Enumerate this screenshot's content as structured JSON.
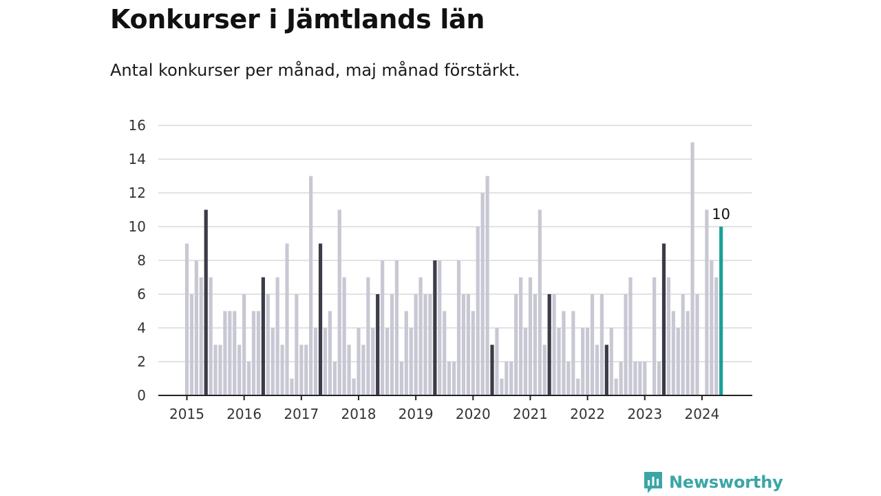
{
  "header": {
    "title": "Konkurser i Jämtlands län",
    "subtitle": "Antal konkurser per månad, maj månad förstärkt."
  },
  "brand": {
    "name": "Newsworthy",
    "icon": "newsworthy-logo-icon",
    "color": "#3aa6a6"
  },
  "colors": {
    "bar": "#c8c8d4",
    "may": "#3c3c48",
    "latest": "#1aa198",
    "grid": "#d9d9d9",
    "axis": "#222222"
  },
  "chart_data": {
    "type": "bar",
    "title": "Konkurser i Jämtlands län",
    "subtitle": "Antal konkurser per månad, maj månad förstärkt.",
    "xlabel": "",
    "ylabel": "",
    "ylim": [
      0,
      16
    ],
    "yticks": [
      0,
      2,
      4,
      6,
      8,
      10,
      12,
      14,
      16
    ],
    "xticks": [
      "2015",
      "2016",
      "2017",
      "2018",
      "2019",
      "2020",
      "2021",
      "2022",
      "2023",
      "2024"
    ],
    "start": "2015-01",
    "end": "2024-05",
    "highlight_month": "maj",
    "grid": true,
    "legend": "none",
    "annotation": {
      "month": "2024-05",
      "label": "10"
    },
    "series": [
      {
        "year": "2015",
        "values": [
          9,
          6,
          8,
          7,
          11,
          7,
          3,
          3,
          5,
          5,
          5,
          3
        ]
      },
      {
        "year": "2016",
        "values": [
          6,
          2,
          5,
          5,
          7,
          6,
          4,
          7,
          3,
          9,
          1,
          6
        ]
      },
      {
        "year": "2017",
        "values": [
          3,
          3,
          13,
          4,
          9,
          4,
          5,
          2,
          11,
          7,
          3,
          1
        ]
      },
      {
        "year": "2018",
        "values": [
          4,
          3,
          7,
          4,
          6,
          8,
          4,
          6,
          8,
          2,
          5,
          4
        ]
      },
      {
        "year": "2019",
        "values": [
          6,
          7,
          6,
          6,
          8,
          8,
          5,
          2,
          2,
          8,
          6,
          6
        ]
      },
      {
        "year": "2020",
        "values": [
          5,
          10,
          12,
          13,
          3,
          4,
          1,
          2,
          2,
          6,
          7,
          4
        ]
      },
      {
        "year": "2021",
        "values": [
          7,
          6,
          11,
          3,
          6,
          6,
          4,
          5,
          2,
          5,
          1,
          4
        ]
      },
      {
        "year": "2022",
        "values": [
          4,
          6,
          3,
          6,
          3,
          4,
          1,
          2,
          6,
          7,
          2,
          2
        ]
      },
      {
        "year": "2023",
        "values": [
          2,
          0,
          7,
          2,
          9,
          7,
          5,
          4,
          6,
          5,
          15,
          6
        ]
      },
      {
        "year": "2024",
        "values": [
          0,
          11,
          8,
          7,
          10
        ]
      }
    ]
  }
}
